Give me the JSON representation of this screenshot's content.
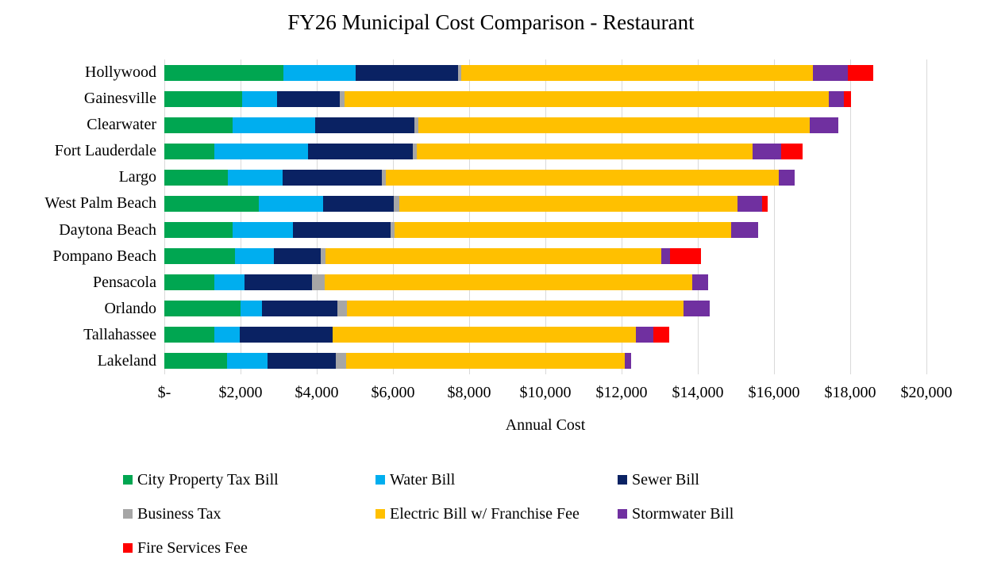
{
  "figure": {
    "background": "#FFFFFF"
  },
  "chart_data": {
    "type": "bar",
    "orientation": "horizontal",
    "stacked": true,
    "title": "FY26 Municipal Cost Comparison - Restaurant",
    "xlabel": "Annual Cost",
    "xlim": [
      0,
      20000
    ],
    "x_tick_labels": [
      "$-",
      "$2,000",
      "$4,000",
      "$6,000",
      "$8,000",
      "$10,000",
      "$12,000",
      "$14,000",
      "$16,000",
      "$18,000",
      "$20,000"
    ],
    "grid": "vertical",
    "legend_position": "bottom-left",
    "gridline_color": "#D9D9D9",
    "categories": [
      "Hollywood",
      "Gainesville",
      "Clearwater",
      "Fort Lauderdale",
      "Largo",
      "West Palm Beach",
      "Daytona Beach",
      "Pompano Beach",
      "Pensacola",
      "Orlando",
      "Tallahassee",
      "Lakeland"
    ],
    "series": [
      {
        "name": "City Property Tax Bill",
        "color": "#00A651",
        "values": [
          3125,
          2040,
          1790,
          1315,
          1665,
          2480,
          1790,
          1855,
          1315,
          2000,
          1315,
          1645
        ]
      },
      {
        "name": "Water Bill",
        "color": "#00AEEF",
        "values": [
          1900,
          915,
          2165,
          2460,
          1440,
          1690,
          1585,
          1020,
          790,
          565,
          665,
          1065
        ]
      },
      {
        "name": "Sewer Bill",
        "color": "#0A2263",
        "values": [
          2690,
          1645,
          2605,
          2750,
          2605,
          1855,
          2560,
          1230,
          1770,
          1980,
          2440,
          1790
        ]
      },
      {
        "name": "Business Tax",
        "color": "#A6A6A6",
        "values": [
          85,
          125,
          105,
          105,
          105,
          145,
          105,
          125,
          335,
          250,
          0,
          270
        ]
      },
      {
        "name": "Electric Bill w/ Franchise Fee",
        "color": "#FFC000",
        "values": [
          9230,
          12710,
          10270,
          8810,
          10310,
          8875,
          8835,
          8810,
          9645,
          8835,
          7960,
          7315
        ]
      },
      {
        "name": "Stormwater Bill",
        "color": "#7030A0",
        "values": [
          915,
          395,
          750,
          750,
          415,
          645,
          710,
          230,
          415,
          690,
          460,
          165
        ]
      },
      {
        "name": "Fire Services Fee",
        "color": "#FF0000",
        "values": [
          665,
          190,
          0,
          565,
          0,
          145,
          0,
          815,
          0,
          0,
          415,
          0
        ]
      }
    ]
  }
}
